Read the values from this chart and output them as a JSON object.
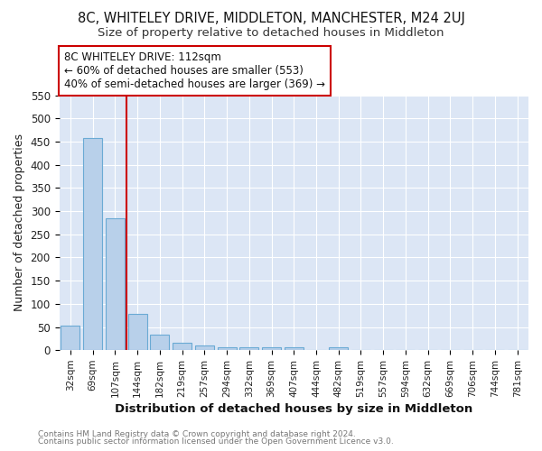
{
  "title": "8C, WHITELEY DRIVE, MIDDLETON, MANCHESTER, M24 2UJ",
  "subtitle": "Size of property relative to detached houses in Middleton",
  "xlabel": "Distribution of detached houses by size in Middleton",
  "ylabel": "Number of detached properties",
  "bin_labels": [
    "32sqm",
    "69sqm",
    "107sqm",
    "144sqm",
    "182sqm",
    "219sqm",
    "257sqm",
    "294sqm",
    "332sqm",
    "369sqm",
    "407sqm",
    "444sqm",
    "482sqm",
    "519sqm",
    "557sqm",
    "594sqm",
    "632sqm",
    "669sqm",
    "706sqm",
    "744sqm",
    "781sqm"
  ],
  "bar_values": [
    53,
    458,
    285,
    78,
    33,
    16,
    10,
    6,
    6,
    6,
    6,
    0,
    6,
    0,
    0,
    0,
    0,
    0,
    0,
    0,
    0
  ],
  "bar_color": "#b8d0ea",
  "bar_edge_color": "#6aaad4",
  "vline_x": 2.5,
  "vline_color": "#cc0000",
  "ylim": [
    0,
    550
  ],
  "yticks": [
    0,
    50,
    100,
    150,
    200,
    250,
    300,
    350,
    400,
    450,
    500,
    550
  ],
  "annotation_title": "8C WHITELEY DRIVE: 112sqm",
  "annotation_line1": "← 60% of detached houses are smaller (553)",
  "annotation_line2": "40% of semi-detached houses are larger (369) →",
  "annotation_box_facecolor": "#ffffff",
  "annotation_box_edgecolor": "#cc0000",
  "footer1": "Contains HM Land Registry data © Crown copyright and database right 2024.",
  "footer2": "Contains public sector information licensed under the Open Government Licence v3.0.",
  "fig_background_color": "#ffffff",
  "plot_bg_color": "#dce6f5"
}
